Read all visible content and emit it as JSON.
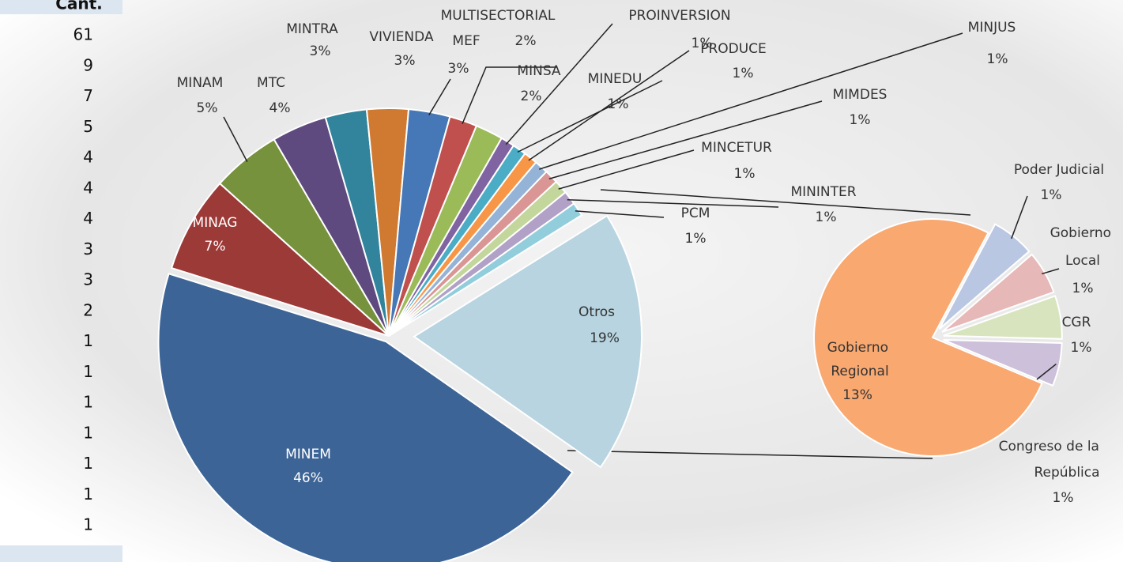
{
  "table": {
    "header": "Cant.",
    "rows": [
      61,
      9,
      7,
      5,
      4,
      4,
      4,
      3,
      3,
      2,
      1,
      1,
      1,
      1,
      1,
      1,
      1
    ]
  },
  "chart_data": [
    {
      "type": "pie",
      "categories": [
        "MINEM",
        "MINAG",
        "MINAM",
        "MTC",
        "MINTRA",
        "VIVIENDA",
        "MEF",
        "MULTISECTORIAL",
        "MINSA",
        "PROINVERSION",
        "MINEDU",
        "PRODUCE",
        "MINJUS",
        "MIMDES",
        "MINCETUR",
        "MININTER",
        "PCM",
        "Otros"
      ],
      "values": [
        46,
        7,
        5,
        4,
        3,
        3,
        3,
        2,
        2,
        1,
        1,
        1,
        1,
        1,
        1,
        1,
        1,
        19
      ],
      "value_labels": [
        "46%",
        "7%",
        "5%",
        "4%",
        "3%",
        "3%",
        "3%",
        "2%",
        "2%",
        "1%",
        "1%",
        "1%",
        "1%",
        "1%",
        "1%",
        "1%",
        "1%",
        "19%"
      ],
      "colors": [
        "#3c6496",
        "#9c3a38",
        "#76923c",
        "#5f4a7f",
        "#31849b",
        "#d07a31",
        "#4677b6",
        "#c0504d",
        "#9bbb59",
        "#8064a2",
        "#4bacc6",
        "#f79646",
        "#95b3d7",
        "#d99694",
        "#c3d69b",
        "#b2a1c7",
        "#92cddc",
        "#b7d4e0"
      ]
    },
    {
      "type": "pie",
      "categories": [
        "Poder Judicial",
        "Gobierno Local",
        "CGR",
        "Congreso de la República",
        "Gobierno Regional"
      ],
      "values": [
        1,
        1,
        1,
        1,
        13
      ],
      "value_labels": [
        "1%",
        "1%",
        "1%",
        "1%",
        "13%"
      ],
      "colors": [
        "#b9c7e3",
        "#e6b8b7",
        "#d7e4bd",
        "#ccc0da",
        "#f9a870"
      ]
    }
  ]
}
